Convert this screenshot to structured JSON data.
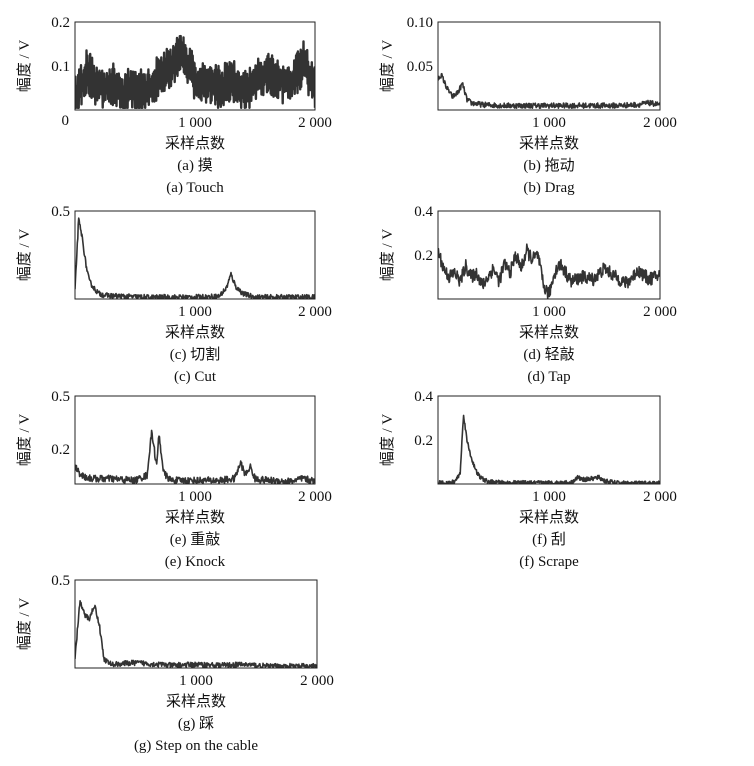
{
  "chart_data": [
    {
      "type": "line",
      "ylabel": "幅度 / V",
      "xlabel": "采样点数",
      "caption_cn": "(a) 摸",
      "caption_en": "(a) Touch",
      "xlim": [
        0,
        2000
      ],
      "ylim": [
        0,
        0.2
      ],
      "x_ticks": [
        {
          "v": 0,
          "label": "0"
        },
        {
          "v": 1000,
          "label": "1 000"
        },
        {
          "v": 2000,
          "label": "2 000"
        }
      ],
      "y_ticks": [
        {
          "v": 0.2,
          "label": "0.2"
        },
        {
          "v": 0.1,
          "label": "0.1"
        }
      ],
      "y_zero_label": "0",
      "noise_amplitude": 0.04,
      "series": [
        {
          "x": [
            0,
            100,
            200,
            300,
            400,
            500,
            600,
            700,
            800,
            900,
            1000,
            1100,
            1200,
            1300,
            1400,
            1500,
            1600,
            1700,
            1800,
            1900,
            2000
          ],
          "y": [
            0.04,
            0.1,
            0.06,
            0.07,
            0.05,
            0.06,
            0.05,
            0.09,
            0.11,
            0.14,
            0.08,
            0.07,
            0.06,
            0.08,
            0.05,
            0.07,
            0.1,
            0.08,
            0.06,
            0.12,
            0.06
          ]
        }
      ]
    },
    {
      "type": "line",
      "ylabel": "幅度 / V",
      "xlabel": "采样点数",
      "caption_cn": "(b) 拖动",
      "caption_en": "(b) Drag",
      "xlim": [
        0,
        2000
      ],
      "ylim": [
        0,
        0.1
      ],
      "x_ticks": [
        {
          "v": 1000,
          "label": "1 000"
        },
        {
          "v": 2000,
          "label": "2 000"
        }
      ],
      "y_ticks": [
        {
          "v": 0.1,
          "label": "0.10"
        },
        {
          "v": 0.05,
          "label": "0.05"
        }
      ],
      "y_zero_label": "",
      "noise_amplitude": 0.003,
      "series": [
        {
          "x": [
            0,
            30,
            80,
            130,
            180,
            220,
            260,
            300,
            400,
            600,
            800,
            1000,
            1200,
            1400,
            1600,
            1800,
            1900,
            2000
          ],
          "y": [
            0.035,
            0.04,
            0.025,
            0.015,
            0.02,
            0.03,
            0.012,
            0.008,
            0.006,
            0.005,
            0.005,
            0.005,
            0.005,
            0.005,
            0.005,
            0.006,
            0.008,
            0.006
          ]
        }
      ]
    },
    {
      "type": "line",
      "ylabel": "幅度 / V",
      "xlabel": "采样点数",
      "caption_cn": "(c) 切割",
      "caption_en": "(c) Cut",
      "xlim": [
        0,
        2000
      ],
      "ylim": [
        0,
        0.5
      ],
      "x_ticks": [
        {
          "v": 1000,
          "label": "1 000"
        },
        {
          "v": 2000,
          "label": "2 000"
        }
      ],
      "y_ticks": [
        {
          "v": 0.5,
          "label": "0.5"
        }
      ],
      "y_zero_label": "",
      "noise_amplitude": 0.015,
      "series": [
        {
          "x": [
            0,
            30,
            60,
            90,
            120,
            160,
            200,
            260,
            400,
            600,
            800,
            1000,
            1200,
            1260,
            1300,
            1340,
            1400,
            1500,
            1700,
            2000
          ],
          "y": [
            0.05,
            0.45,
            0.35,
            0.2,
            0.1,
            0.06,
            0.03,
            0.02,
            0.015,
            0.01,
            0.01,
            0.01,
            0.015,
            0.06,
            0.14,
            0.07,
            0.03,
            0.01,
            0.01,
            0.01
          ]
        }
      ]
    },
    {
      "type": "line",
      "ylabel": "幅度 / V",
      "xlabel": "采样点数",
      "caption_cn": "(d) 轻敲",
      "caption_en": "(d) Tap",
      "xlim": [
        0,
        2000
      ],
      "ylim": [
        0,
        0.4
      ],
      "x_ticks": [
        {
          "v": 1000,
          "label": "1 000"
        },
        {
          "v": 2000,
          "label": "2 000"
        }
      ],
      "y_ticks": [
        {
          "v": 0.4,
          "label": "0.4"
        },
        {
          "v": 0.2,
          "label": "0.2"
        }
      ],
      "y_zero_label": "",
      "noise_amplitude": 0.03,
      "series": [
        {
          "x": [
            0,
            50,
            100,
            150,
            200,
            250,
            300,
            350,
            400,
            450,
            500,
            550,
            600,
            650,
            700,
            750,
            800,
            850,
            900,
            950,
            1000,
            1050,
            1100,
            1200,
            1300,
            1400,
            1500,
            1600,
            1700,
            1800,
            1900,
            2000
          ],
          "y": [
            0.22,
            0.14,
            0.1,
            0.12,
            0.08,
            0.15,
            0.1,
            0.12,
            0.06,
            0.1,
            0.14,
            0.08,
            0.16,
            0.12,
            0.2,
            0.14,
            0.22,
            0.18,
            0.2,
            0.06,
            0.02,
            0.12,
            0.16,
            0.08,
            0.1,
            0.09,
            0.14,
            0.1,
            0.07,
            0.13,
            0.09,
            0.11
          ]
        }
      ]
    },
    {
      "type": "line",
      "ylabel": "幅度 / V",
      "xlabel": "采样点数",
      "caption_cn": "(e) 重敲",
      "caption_en": "(e) Knock",
      "xlim": [
        0,
        2000
      ],
      "ylim": [
        0,
        0.5
      ],
      "x_ticks": [
        {
          "v": 1000,
          "label": "1 000"
        },
        {
          "v": 2000,
          "label": "2 000"
        }
      ],
      "y_ticks": [
        {
          "v": 0.5,
          "label": "0.5"
        },
        {
          "v": 0.2,
          "label": "0.2"
        }
      ],
      "y_zero_label": "",
      "noise_amplitude": 0.02,
      "series": [
        {
          "x": [
            0,
            40,
            80,
            150,
            300,
            500,
            600,
            640,
            680,
            700,
            740,
            800,
            1000,
            1200,
            1330,
            1380,
            1420,
            1460,
            1500,
            1600,
            1800,
            1900,
            2000
          ],
          "y": [
            0.1,
            0.06,
            0.04,
            0.03,
            0.03,
            0.02,
            0.05,
            0.3,
            0.1,
            0.28,
            0.06,
            0.02,
            0.02,
            0.02,
            0.03,
            0.12,
            0.05,
            0.1,
            0.03,
            0.02,
            0.015,
            0.03,
            0.015
          ]
        }
      ]
    },
    {
      "type": "line",
      "ylabel": "幅度 / V",
      "xlabel": "采样点数",
      "caption_cn": "(f) 刮",
      "caption_en": "(f) Scrape",
      "xlim": [
        0,
        2000
      ],
      "ylim": [
        0,
        0.4
      ],
      "x_ticks": [
        {
          "v": 1000,
          "label": "1 000"
        },
        {
          "v": 2000,
          "label": "2 000"
        }
      ],
      "y_ticks": [
        {
          "v": 0.4,
          "label": "0.4"
        },
        {
          "v": 0.2,
          "label": "0.2"
        }
      ],
      "y_zero_label": "",
      "noise_amplitude": 0.01,
      "series": [
        {
          "x": [
            0,
            100,
            150,
            200,
            230,
            260,
            300,
            340,
            380,
            450,
            600,
            800,
            1000,
            1200,
            1260,
            1300,
            1400,
            1450,
            1500,
            1600,
            1800,
            2000
          ],
          "y": [
            0.005,
            0.005,
            0.01,
            0.05,
            0.32,
            0.2,
            0.12,
            0.06,
            0.03,
            0.01,
            0.005,
            0.005,
            0.005,
            0.006,
            0.03,
            0.02,
            0.025,
            0.03,
            0.015,
            0.005,
            0.003,
            0.003
          ]
        }
      ]
    },
    {
      "type": "line",
      "ylabel": "幅度 / V",
      "xlabel": "采样点数",
      "caption_cn": "(g) 踩",
      "caption_en": "(g) Step on the cable",
      "xlim": [
        0,
        2000
      ],
      "ylim": [
        0,
        0.5
      ],
      "x_ticks": [
        {
          "v": 1000,
          "label": "1 000"
        },
        {
          "v": 2000,
          "label": "2 000"
        }
      ],
      "y_ticks": [
        {
          "v": 0.5,
          "label": "0.5"
        }
      ],
      "y_zero_label": "",
      "noise_amplitude": 0.015,
      "series": [
        {
          "x": [
            0,
            40,
            80,
            120,
            160,
            200,
            240,
            300,
            500,
            800,
            1000,
            1200,
            1400,
            1600,
            1800,
            2000
          ],
          "y": [
            0.05,
            0.38,
            0.3,
            0.28,
            0.36,
            0.25,
            0.05,
            0.02,
            0.03,
            0.015,
            0.02,
            0.015,
            0.02,
            0.01,
            0.01,
            0.01
          ]
        }
      ]
    }
  ]
}
